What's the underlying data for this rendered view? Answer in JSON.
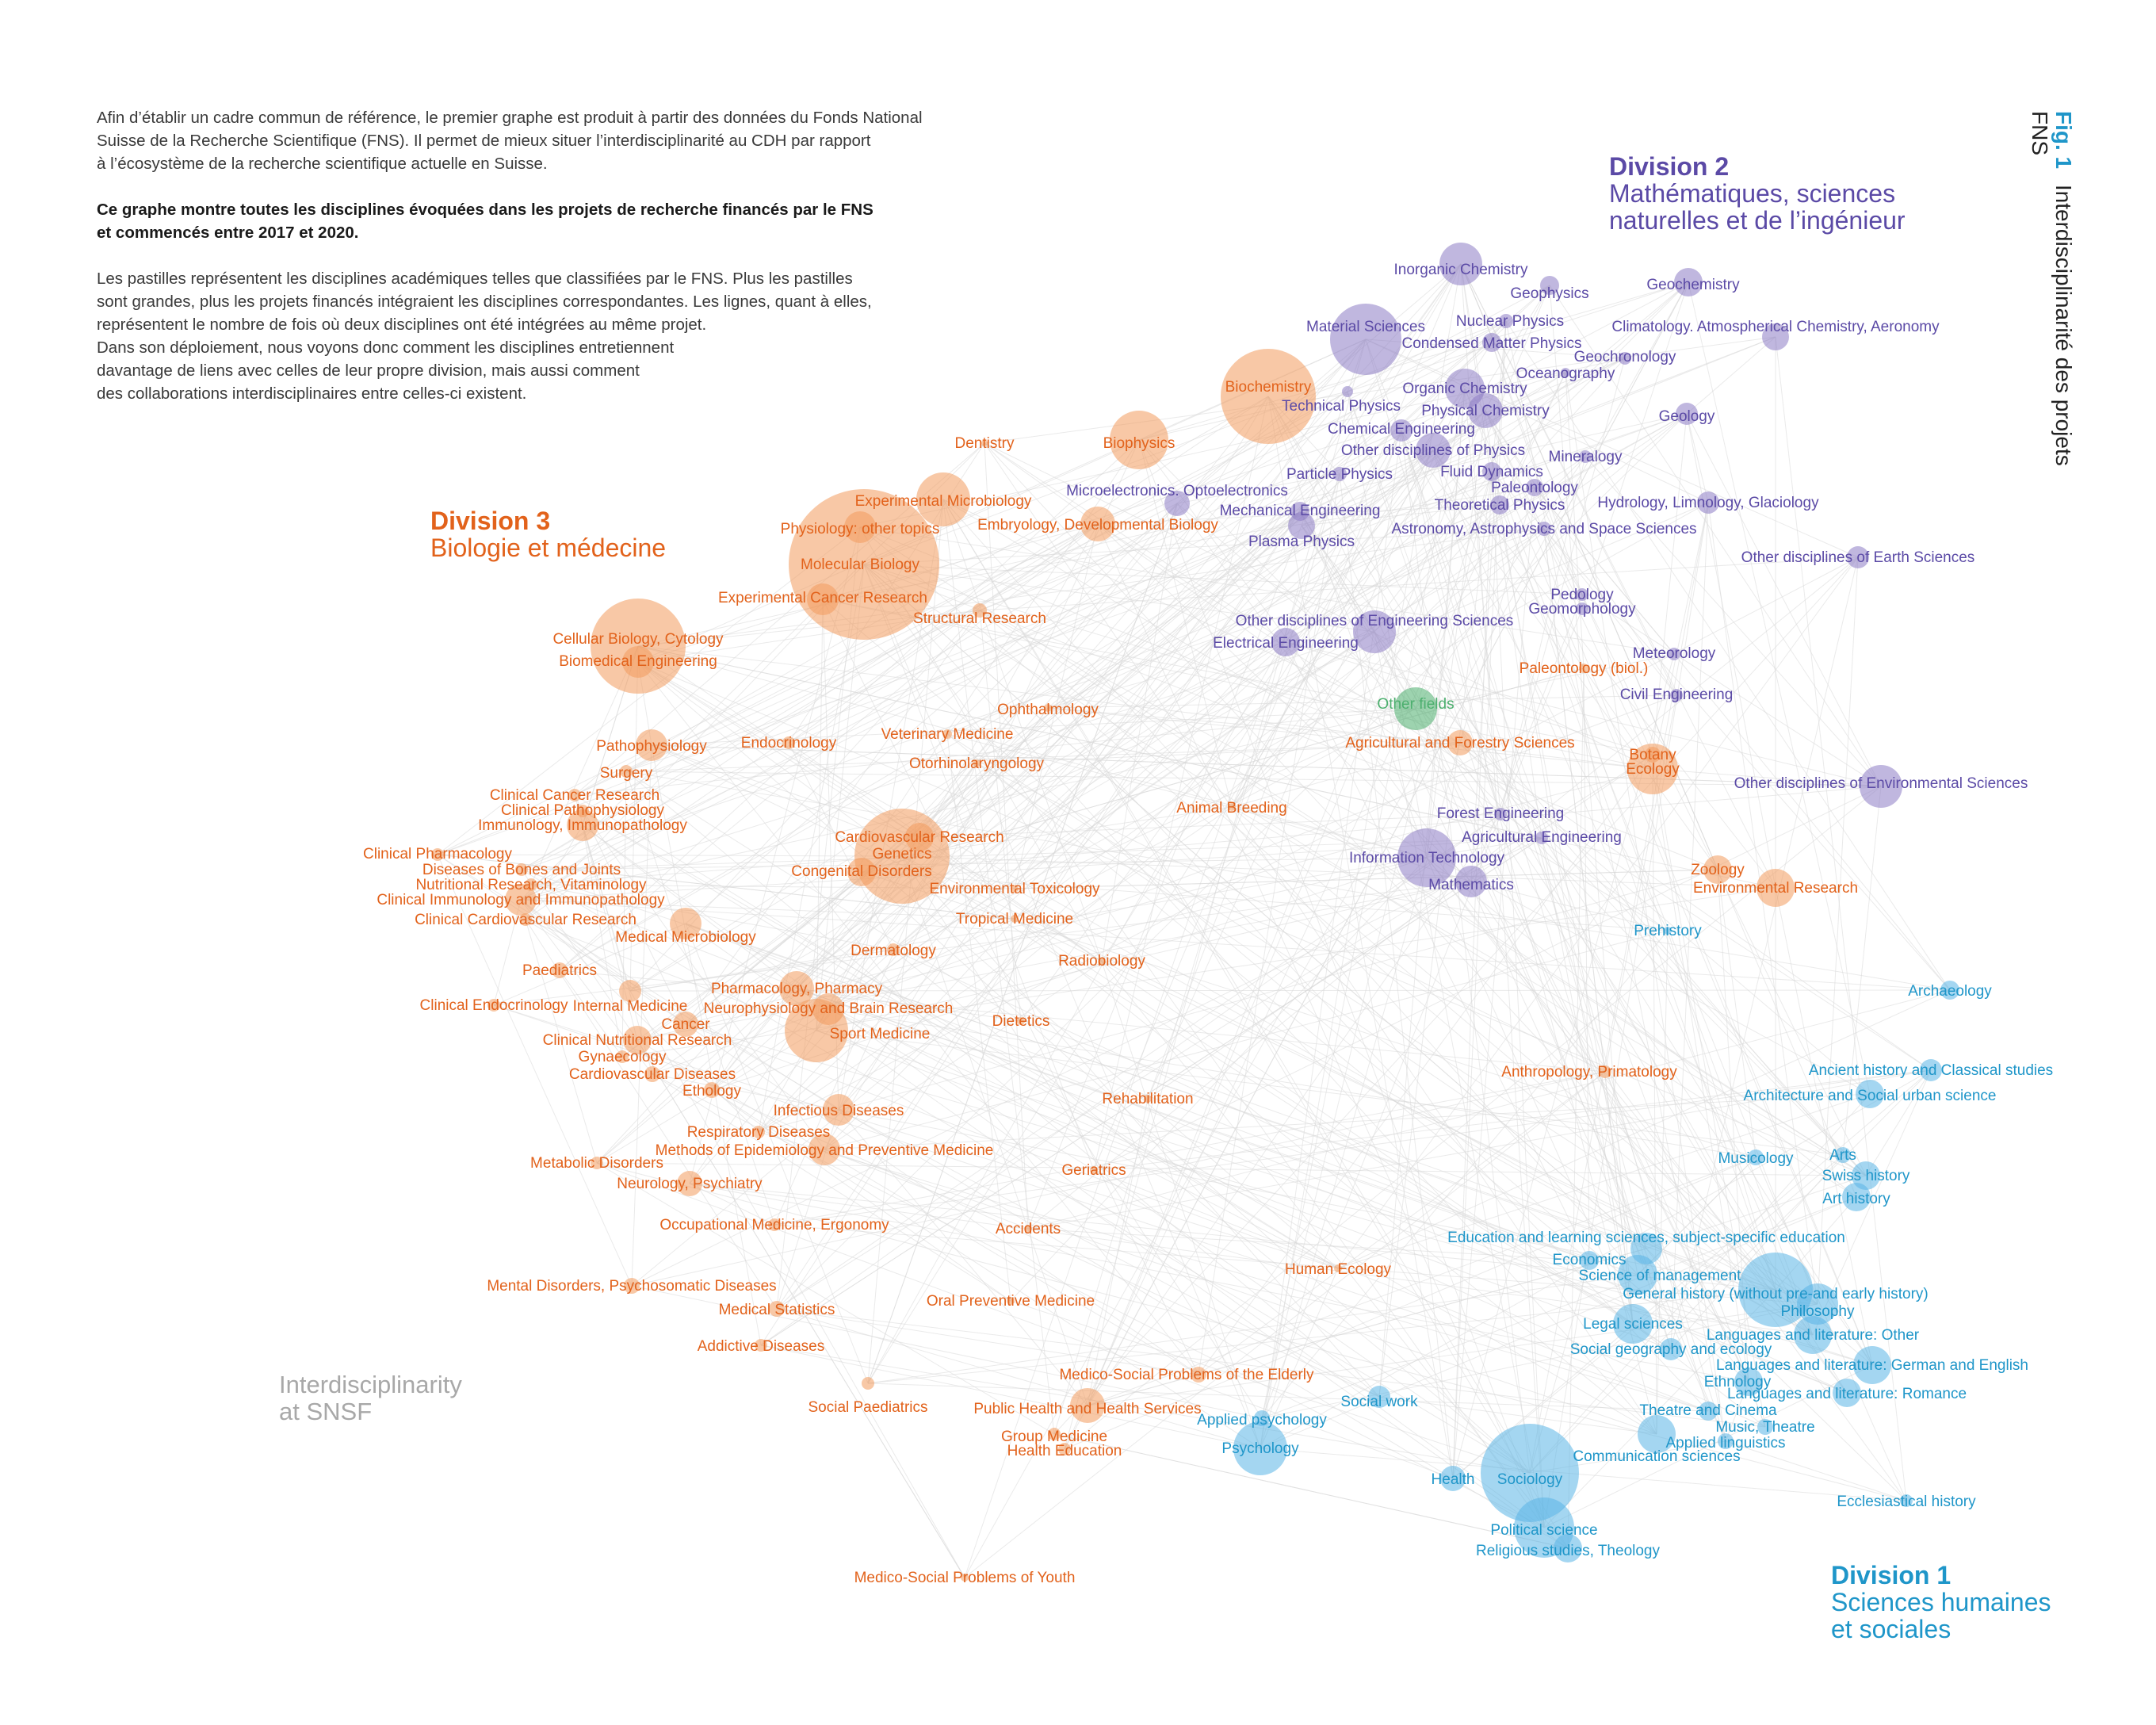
{
  "intro": {
    "p1": [
      "Afin d’établir un cadre commun de référence, le premier graphe est produit à partir des données du Fonds National",
      "Suisse de la Recherche Scientifique (FNS). Il permet de mieux situer l’interdisciplinarité au CDH par rapport",
      "à l’écosystème de la recherche scientifique actuelle en Suisse."
    ],
    "p2": [
      "Ce graphe montre toutes les disciplines évoquées dans les projets de recherche financés par le FNS",
      "et commencés entre 2017 et 2020."
    ],
    "p3": [
      "Les pastilles représentent les disciplines académiques telles que classifiées par le FNS. Plus les pastilles",
      "sont grandes, plus les projets financés intégraient les disciplines correspondantes. Les lignes, quant à elles,",
      "représentent le nombre de fois où deux disciplines ont été intégrées au même projet.",
      "Dans son déploiement, nous voyons donc comment les disciplines entretiennent",
      "davantage de liens avec celles de leur propre division, mais aussi comment",
      "des collaborations interdisciplinaires entre celles-ci existent."
    ]
  },
  "fig_label": "Fig. 1",
  "fig_title": "Interdisciplinarité des projets FNS",
  "divisions": {
    "d1": {
      "title": "Division 1",
      "sub1": "Sciences humaines",
      "sub2": "et sociales",
      "color": "#1f96c9"
    },
    "d2": {
      "title": "Division 2",
      "sub1": "Mathématiques, sciences",
      "sub2": "naturelles et de l’ingénieur",
      "color": "#5b4aa6"
    },
    "d3": {
      "title": "Division 3",
      "sub1": "Biologie et médecine",
      "color": "#e2621b"
    }
  },
  "watermark": {
    "line1": "Interdisciplinarity",
    "line2": "at SNSF"
  },
  "colors": {
    "bio": "#f29a5c",
    "bio_text": "#e2621b",
    "math": "#8c7bc4",
    "math_text": "#5b4aa6",
    "hum": "#5ab4e5",
    "hum_text": "#1f96c9",
    "other": "#4caf6e",
    "edge": "#d8d8d8"
  },
  "nodes": [
    {
      "name": "Inorganic Chemistry",
      "div": "math"
    },
    {
      "name": "Geophysics",
      "div": "math"
    },
    {
      "name": "Geochemistry",
      "div": "math"
    },
    {
      "name": "Material Sciences",
      "div": "math"
    },
    {
      "name": "Nuclear Physics",
      "div": "math"
    },
    {
      "name": "Condensed Matter Physics",
      "div": "math"
    },
    {
      "name": "Climatology. Atmospherical Chemistry, Aeronomy",
      "div": "math"
    },
    {
      "name": "Geochronology",
      "div": "math"
    },
    {
      "name": "Oceanography",
      "div": "math"
    },
    {
      "name": "Organic Chemistry",
      "div": "math"
    },
    {
      "name": "Technical Physics",
      "div": "math"
    },
    {
      "name": "Physical Chemistry",
      "div": "math"
    },
    {
      "name": "Geology",
      "div": "math"
    },
    {
      "name": "Chemical Engineering",
      "div": "math"
    },
    {
      "name": "Other disciplines of Physics",
      "div": "math"
    },
    {
      "name": "Mineralogy",
      "div": "math"
    },
    {
      "name": "Particle Physics",
      "div": "math"
    },
    {
      "name": "Fluid Dynamics",
      "div": "math"
    },
    {
      "name": "Microelectronics. Optoelectronics",
      "div": "math"
    },
    {
      "name": "Paleontology",
      "div": "math"
    },
    {
      "name": "Mechanical Engineering",
      "div": "math"
    },
    {
      "name": "Theoretical Physics",
      "div": "math"
    },
    {
      "name": "Hydrology, Limnology, Glaciology",
      "div": "math"
    },
    {
      "name": "Astronomy, Astrophysics and Space Sciences",
      "div": "math"
    },
    {
      "name": "Plasma Physics",
      "div": "math"
    },
    {
      "name": "Other disciplines of Earth Sciences",
      "div": "math"
    },
    {
      "name": "Pedology",
      "div": "math"
    },
    {
      "name": "Geomorphology",
      "div": "math"
    },
    {
      "name": "Other disciplines of Engineering Sciences",
      "div": "math"
    },
    {
      "name": "Electrical Engineering",
      "div": "math"
    },
    {
      "name": "Meteorology",
      "div": "math"
    },
    {
      "name": "Civil Engineering",
      "div": "math"
    },
    {
      "name": "Other disciplines of Environmental Sciences",
      "div": "math"
    },
    {
      "name": "Forest Engineering",
      "div": "math"
    },
    {
      "name": "Agricultural Engineering",
      "div": "math"
    },
    {
      "name": "Information Technology",
      "div": "math"
    },
    {
      "name": "Mathematics",
      "div": "math"
    },
    {
      "name": "Other fields",
      "div": "other"
    },
    {
      "name": "Biochemistry",
      "div": "bio"
    },
    {
      "name": "Dentistry",
      "div": "bio"
    },
    {
      "name": "Biophysics",
      "div": "bio"
    },
    {
      "name": "Experimental Microbiology",
      "div": "bio"
    },
    {
      "name": "Physiology: other topics",
      "div": "bio"
    },
    {
      "name": "Embryology, Developmental Biology",
      "div": "bio"
    },
    {
      "name": "Molecular Biology",
      "div": "bio"
    },
    {
      "name": "Experimental Cancer Research",
      "div": "bio"
    },
    {
      "name": "Structural Research",
      "div": "bio"
    },
    {
      "name": "Cellular Biology, Cytology",
      "div": "bio"
    },
    {
      "name": "Biomedical Engineering",
      "div": "bio"
    },
    {
      "name": "Paleontology (biol.)",
      "div": "bio"
    },
    {
      "name": "Ophthalmology",
      "div": "bio"
    },
    {
      "name": "Veterinary Medicine",
      "div": "bio"
    },
    {
      "name": "Endocrinology",
      "div": "bio"
    },
    {
      "name": "Pathophysiology",
      "div": "bio"
    },
    {
      "name": "Otorhinolaryngology",
      "div": "bio"
    },
    {
      "name": "Agricultural and Forestry Sciences",
      "div": "bio"
    },
    {
      "name": "Botany",
      "div": "bio"
    },
    {
      "name": "Ecology",
      "div": "bio"
    },
    {
      "name": "Surgery",
      "div": "bio"
    },
    {
      "name": "Clinical Cancer Research",
      "div": "bio"
    },
    {
      "name": "Clinical Pathophysiology",
      "div": "bio"
    },
    {
      "name": "Immunology, Immunopathology",
      "div": "bio"
    },
    {
      "name": "Animal Breeding",
      "div": "bio"
    },
    {
      "name": "Clinical Pharmacology",
      "div": "bio"
    },
    {
      "name": "Cardiovascular Research",
      "div": "bio"
    },
    {
      "name": "Genetics",
      "div": "bio"
    },
    {
      "name": "Diseases of Bones and Joints",
      "div": "bio"
    },
    {
      "name": "Congenital Disorders",
      "div": "bio"
    },
    {
      "name": "Nutritional Research, Vitaminology",
      "div": "bio"
    },
    {
      "name": "Environmental Toxicology",
      "div": "bio"
    },
    {
      "name": "Clinical Immunology and Immunopathology",
      "div": "bio"
    },
    {
      "name": "Zoology",
      "div": "bio"
    },
    {
      "name": "Environmental Research",
      "div": "bio"
    },
    {
      "name": "Clinical Cardiovascular Research",
      "div": "bio"
    },
    {
      "name": "Tropical Medicine",
      "div": "bio"
    },
    {
      "name": "Medical Microbiology",
      "div": "bio"
    },
    {
      "name": "Dermatology",
      "div": "bio"
    },
    {
      "name": "Paediatrics",
      "div": "bio"
    },
    {
      "name": "Radiobiology",
      "div": "bio"
    },
    {
      "name": "Pharmacology, Pharmacy",
      "div": "bio"
    },
    {
      "name": "Internal Medicine",
      "div": "bio"
    },
    {
      "name": "Clinical Endocrinology",
      "div": "bio"
    },
    {
      "name": "Neurophysiology and Brain Research",
      "div": "bio"
    },
    {
      "name": "Cancer",
      "div": "bio"
    },
    {
      "name": "Dietetics",
      "div": "bio"
    },
    {
      "name": "Sport Medicine",
      "div": "bio"
    },
    {
      "name": "Clinical Nutritional Research",
      "div": "bio"
    },
    {
      "name": "Gynaecology",
      "div": "bio"
    },
    {
      "name": "Cardiovascular Diseases",
      "div": "bio"
    },
    {
      "name": "Anthropology, Primatology",
      "div": "bio"
    },
    {
      "name": "Ethology",
      "div": "bio"
    },
    {
      "name": "Rehabilitation",
      "div": "bio"
    },
    {
      "name": "Infectious Diseases",
      "div": "bio"
    },
    {
      "name": "Respiratory Diseases",
      "div": "bio"
    },
    {
      "name": "Methods of Epidemiology and Preventive Medicine",
      "div": "bio"
    },
    {
      "name": "Metabolic Disorders",
      "div": "bio"
    },
    {
      "name": "Geriatrics",
      "div": "bio"
    },
    {
      "name": "Neurology, Psychiatry",
      "div": "bio"
    },
    {
      "name": "Occupational Medicine, Ergonomy",
      "div": "bio"
    },
    {
      "name": "Accidents",
      "div": "bio"
    },
    {
      "name": "Human Ecology",
      "div": "bio"
    },
    {
      "name": "Mental Disorders, Psychosomatic Diseases",
      "div": "bio"
    },
    {
      "name": "Medical Statistics",
      "div": "bio"
    },
    {
      "name": "Oral Preventive Medicine",
      "div": "bio"
    },
    {
      "name": "Addictive Diseases",
      "div": "bio"
    },
    {
      "name": "Medico-Social Problems of the Elderly",
      "div": "bio"
    },
    {
      "name": "Social Paediatrics",
      "div": "bio"
    },
    {
      "name": "Public Health and Health Services",
      "div": "bio"
    },
    {
      "name": "Group Medicine",
      "div": "bio"
    },
    {
      "name": "Health Education",
      "div": "bio"
    },
    {
      "name": "Medico-Social Problems of Youth",
      "div": "bio"
    },
    {
      "name": "Prehistory",
      "div": "hum"
    },
    {
      "name": "Archaeology",
      "div": "hum"
    },
    {
      "name": "Ancient history and Classical studies",
      "div": "hum"
    },
    {
      "name": "Architecture and Social urban science",
      "div": "hum"
    },
    {
      "name": "Musicology",
      "div": "hum"
    },
    {
      "name": "Arts",
      "div": "hum"
    },
    {
      "name": "Swiss history",
      "div": "hum"
    },
    {
      "name": "Art history",
      "div": "hum"
    },
    {
      "name": "Education and learning sciences, subject-specific education",
      "div": "hum"
    },
    {
      "name": "Economics",
      "div": "hum"
    },
    {
      "name": "Science of management",
      "div": "hum"
    },
    {
      "name": "General history (without pre-and early history)",
      "div": "hum"
    },
    {
      "name": "Philosophy",
      "div": "hum"
    },
    {
      "name": "Legal sciences",
      "div": "hum"
    },
    {
      "name": "Languages and literature: Other",
      "div": "hum"
    },
    {
      "name": "Social geography and ecology",
      "div": "hum"
    },
    {
      "name": "Languages and literature: German and English",
      "div": "hum"
    },
    {
      "name": "Ethnology",
      "div": "hum"
    },
    {
      "name": "Languages and literature: Romance",
      "div": "hum"
    },
    {
      "name": "Social work",
      "div": "hum"
    },
    {
      "name": "Applied psychology",
      "div": "hum"
    },
    {
      "name": "Theatre and Cinema",
      "div": "hum"
    },
    {
      "name": "Music, Theatre",
      "div": "hum"
    },
    {
      "name": "Psychology",
      "div": "hum"
    },
    {
      "name": "Applied linguistics",
      "div": "hum"
    },
    {
      "name": "Communication sciences",
      "div": "hum"
    },
    {
      "name": "Health",
      "div": "hum"
    },
    {
      "name": "Sociology",
      "div": "hum"
    },
    {
      "name": "Ecclesiastical history",
      "div": "hum"
    },
    {
      "name": "Political science",
      "div": "hum"
    },
    {
      "name": "Religious studies, Theology",
      "div": "hum"
    }
  ]
}
